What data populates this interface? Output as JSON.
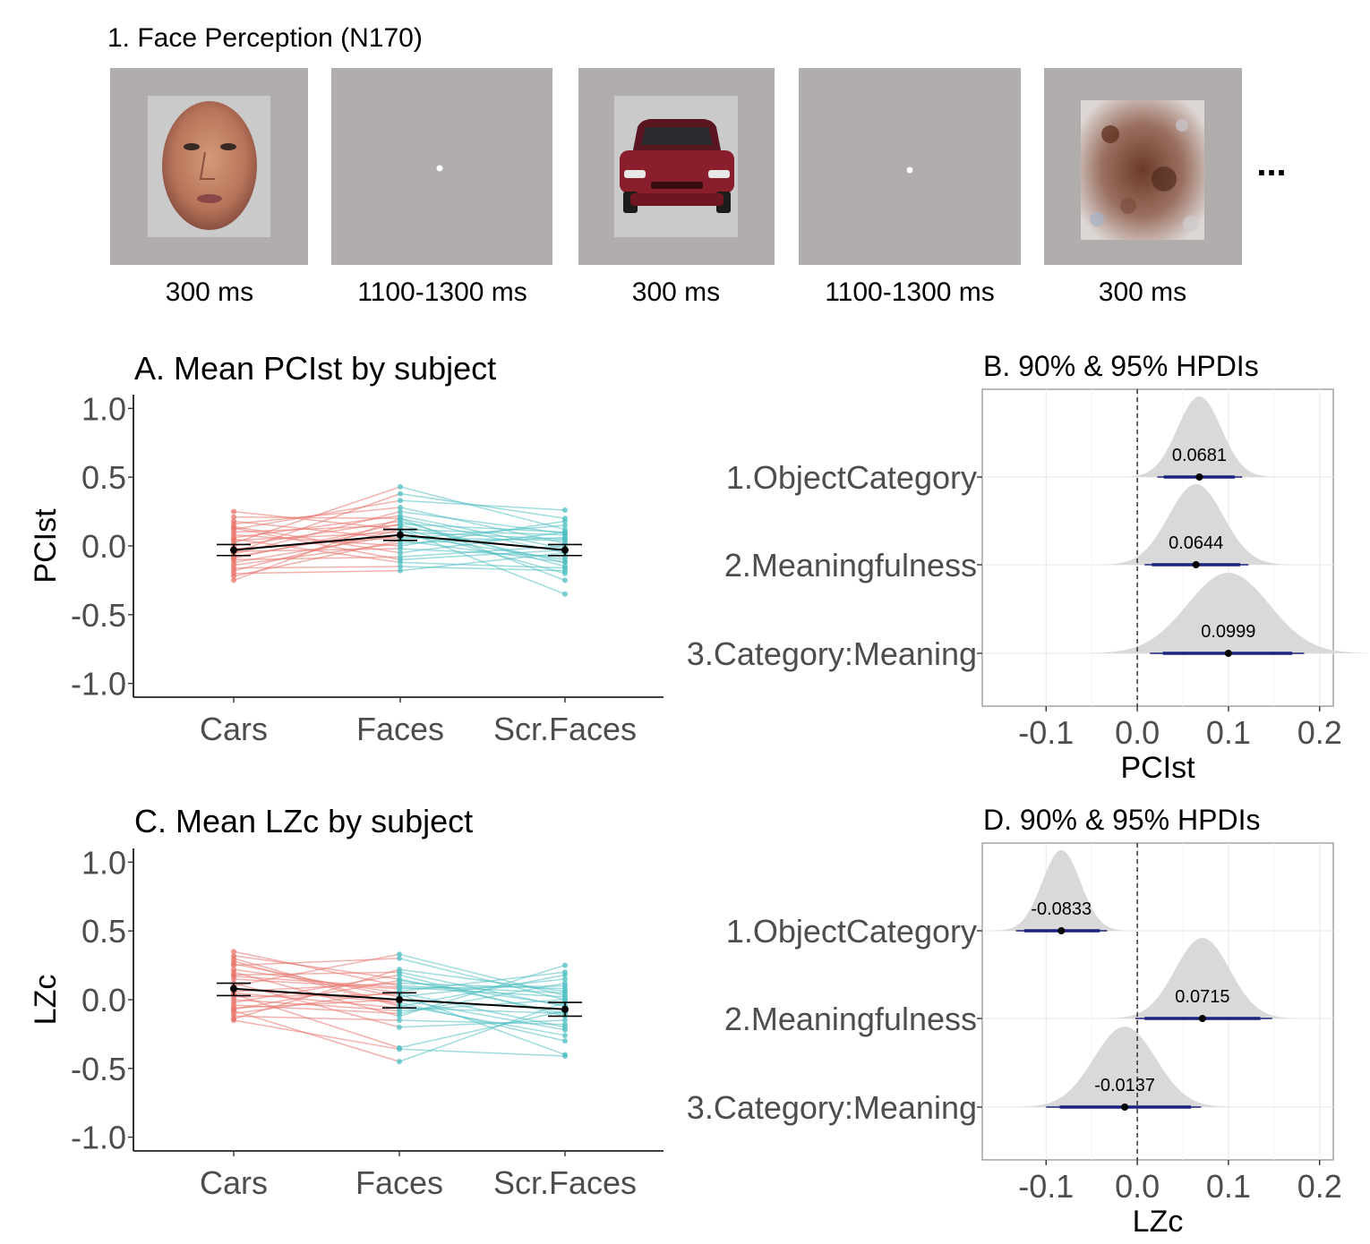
{
  "paradigm": {
    "title": "1. Face Perception (N170)",
    "frames": [
      {
        "kind": "face",
        "label": "300 ms"
      },
      {
        "kind": "fixation",
        "label": "1100-1300 ms"
      },
      {
        "kind": "car",
        "label": "300 ms"
      },
      {
        "kind": "fixation",
        "label": "1100-1300 ms"
      },
      {
        "kind": "scrambled",
        "label": "300 ms"
      }
    ],
    "ellipsis": "..."
  },
  "colors": {
    "cars": "#e8736b",
    "faces": "#4fbfc3",
    "mean": "#000000",
    "hpdi": "#1a237e",
    "density": "#d9d9d9",
    "stim_bg": "#b0adac"
  },
  "chart_data": [
    {
      "id": "A",
      "type": "line",
      "title": "A. Mean PCIst by subject",
      "ylabel": "PCIst",
      "xlabel": "",
      "categories": [
        "Cars",
        "Faces",
        "Scr.Faces"
      ],
      "ylim": [
        -1.1,
        1.1
      ],
      "yticks": [
        1.0,
        0.5,
        0.0,
        -0.5,
        -1.0
      ],
      "ytick_labels": [
        "1.0",
        "0.5",
        "0.0",
        "-0.5",
        "-1.0"
      ],
      "mean": {
        "values": [
          -0.03,
          0.08,
          -0.03
        ],
        "ci_low": [
          -0.07,
          0.04,
          -0.07
        ],
        "ci_high": [
          0.01,
          0.12,
          0.01
        ]
      },
      "subjects": [
        [
          0.25,
          0.12,
          0.08
        ],
        [
          0.21,
          0.2,
          -0.05
        ],
        [
          0.18,
          0.05,
          0.15
        ],
        [
          0.16,
          0.28,
          0.02
        ],
        [
          0.14,
          -0.05,
          0.1
        ],
        [
          0.12,
          0.33,
          0.26
        ],
        [
          0.1,
          0.15,
          -0.12
        ],
        [
          0.08,
          0.0,
          0.18
        ],
        [
          0.06,
          0.22,
          -0.02
        ],
        [
          0.04,
          0.1,
          0.05
        ],
        [
          0.02,
          0.43,
          0.12
        ],
        [
          0.0,
          0.18,
          -0.15
        ],
        [
          -0.02,
          0.06,
          0.04
        ],
        [
          -0.04,
          -0.02,
          -0.08
        ],
        [
          -0.06,
          0.25,
          0.09
        ],
        [
          -0.08,
          0.13,
          -0.2
        ],
        [
          -0.1,
          -0.08,
          0.0
        ],
        [
          -0.12,
          0.08,
          -0.1
        ],
        [
          -0.14,
          0.02,
          0.06
        ],
        [
          -0.16,
          -0.15,
          -0.18
        ],
        [
          -0.18,
          0.12,
          -0.35
        ],
        [
          -0.2,
          -0.18,
          -0.05
        ],
        [
          -0.22,
          0.04,
          -0.12
        ],
        [
          -0.25,
          0.2,
          -0.25
        ],
        [
          0.13,
          -0.1,
          -0.03
        ],
        [
          -0.05,
          0.38,
          0.2
        ],
        [
          0.05,
          -0.12,
          -0.16
        ],
        [
          -0.09,
          0.16,
          0.1
        ]
      ]
    },
    {
      "id": "B",
      "type": "area",
      "title": "B. 90% & 95% HPDIs",
      "xlabel": "PCIst",
      "xlim": [
        -0.17,
        0.215
      ],
      "xticks": [
        -0.1,
        0.0,
        0.1,
        0.2
      ],
      "xtick_labels": [
        "-0.1",
        "0.0",
        "0.1",
        "0.2"
      ],
      "series": [
        {
          "name": "1.ObjectCategory",
          "mean": 0.0681,
          "label": "0.0681",
          "sd": 0.024,
          "hpdi90": [
            0.029,
            0.107
          ],
          "hpdi95": [
            0.022,
            0.115
          ]
        },
        {
          "name": "2.Meaningfulness",
          "mean": 0.0644,
          "label": "0.0644",
          "sd": 0.03,
          "hpdi90": [
            0.016,
            0.113
          ],
          "hpdi95": [
            0.008,
            0.122
          ]
        },
        {
          "name": "3.Category:Meaning",
          "mean": 0.0999,
          "label": "0.0999",
          "sd": 0.045,
          "hpdi90": [
            0.028,
            0.17
          ],
          "hpdi95": [
            0.014,
            0.183
          ]
        }
      ]
    },
    {
      "id": "C",
      "type": "line",
      "title": "C. Mean LZc by subject",
      "ylabel": "LZc",
      "xlabel": "",
      "categories": [
        "Cars",
        "Faces",
        "Scr.Faces"
      ],
      "ylim": [
        -1.1,
        1.1
      ],
      "yticks": [
        1.0,
        0.5,
        0.0,
        -0.5,
        -1.0
      ],
      "ytick_labels": [
        "1.0",
        "0.5",
        "0.0",
        "-0.5",
        "-1.0"
      ],
      "mean": {
        "values": [
          0.08,
          0.0,
          -0.07
        ],
        "ci_low": [
          0.03,
          -0.06,
          -0.12
        ],
        "ci_high": [
          0.12,
          0.05,
          -0.02
        ]
      },
      "subjects": [
        [
          0.35,
          0.1,
          0.05
        ],
        [
          0.32,
          0.15,
          -0.1
        ],
        [
          0.28,
          -0.05,
          0.18
        ],
        [
          0.25,
          0.3,
          0.0
        ],
        [
          0.22,
          0.05,
          -0.2
        ],
        [
          0.2,
          -0.12,
          0.25
        ],
        [
          0.18,
          0.2,
          -0.05
        ],
        [
          0.15,
          0.08,
          0.1
        ],
        [
          0.12,
          -0.2,
          -0.15
        ],
        [
          0.1,
          0.33,
          0.03
        ],
        [
          0.08,
          -0.02,
          -0.3
        ],
        [
          0.06,
          0.12,
          0.08
        ],
        [
          0.04,
          -0.35,
          -0.08
        ],
        [
          0.02,
          0.04,
          -0.4
        ],
        [
          0.0,
          -0.08,
          0.0
        ],
        [
          -0.02,
          0.18,
          -0.12
        ],
        [
          -0.04,
          -0.1,
          0.12
        ],
        [
          -0.06,
          0.0,
          -0.22
        ],
        [
          -0.08,
          -0.45,
          -0.02
        ],
        [
          -0.1,
          0.06,
          0.2
        ],
        [
          -0.12,
          -0.15,
          -0.18
        ],
        [
          -0.14,
          0.22,
          0.06
        ],
        [
          -0.15,
          -0.36,
          -0.41
        ],
        [
          0.3,
          -0.04,
          -0.26
        ],
        [
          0.17,
          0.09,
          0.02
        ],
        [
          0.05,
          -0.06,
          -0.1
        ],
        [
          -0.07,
          0.14,
          -0.04
        ],
        [
          0.26,
          0.02,
          0.15
        ]
      ]
    },
    {
      "id": "D",
      "type": "area",
      "title": "D. 90% & 95% HPDIs",
      "xlabel": "LZc",
      "xlim": [
        -0.17,
        0.215
      ],
      "xticks": [
        -0.1,
        0.0,
        0.1,
        0.2
      ],
      "xtick_labels": [
        "-0.1",
        "0.0",
        "0.1",
        "0.2"
      ],
      "series": [
        {
          "name": "1.ObjectCategory",
          "mean": -0.0833,
          "label": "-0.0833",
          "sd": 0.021,
          "hpdi90": [
            -0.124,
            -0.041
          ],
          "hpdi95": [
            -0.133,
            -0.033
          ]
        },
        {
          "name": "2.Meaningfulness",
          "mean": 0.0715,
          "label": "0.0715",
          "sd": 0.03,
          "hpdi90": [
            0.008,
            0.135
          ],
          "hpdi95": [
            -0.002,
            0.148
          ]
        },
        {
          "name": "3.Category:Meaning",
          "mean": -0.0137,
          "label": "-0.0137",
          "sd": 0.034,
          "hpdi90": [
            -0.085,
            0.059
          ],
          "hpdi95": [
            -0.1,
            0.07
          ]
        }
      ]
    }
  ]
}
